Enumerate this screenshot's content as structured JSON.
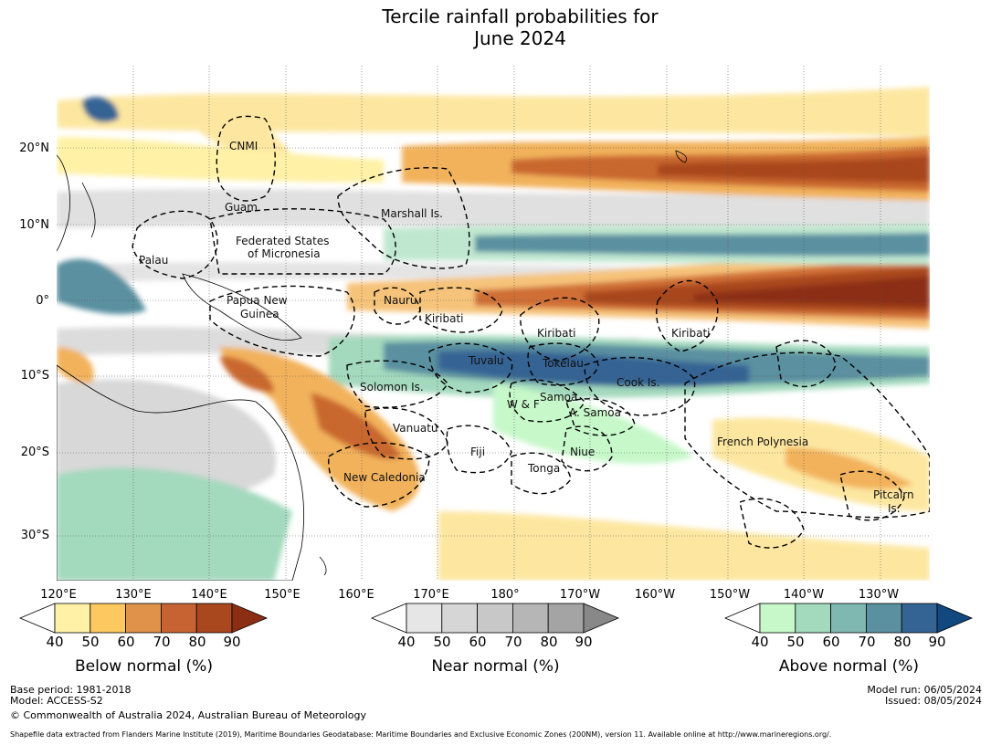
{
  "title": {
    "line1": "Tercile rainfall probabilities for",
    "line2": "June 2024"
  },
  "axes": {
    "lat_ticks": [
      "20°N",
      "10°N",
      "0°",
      "10°S",
      "20°S",
      "30°S"
    ],
    "lon_ticks": [
      "120°E",
      "130°E",
      "140°E",
      "150°E",
      "160°E",
      "170°E",
      "180°",
      "170°W",
      "160°W",
      "150°W",
      "140°W",
      "130°W"
    ]
  },
  "regions": [
    "CNMI",
    "Guam",
    "Marshall Is.",
    "Federated States",
    "of Micronesia",
    "Palau",
    "Nauru",
    "Papua New",
    "Guinea",
    "Kiribati",
    "Kiribati",
    "Kiribati",
    "Tuvalu",
    "Tokelau",
    "Cook Is.",
    "Solomon Is.",
    "Samoa",
    "W & F",
    "A. Samoa",
    "Vanuatu",
    "Fiji",
    "Niue",
    "Tonga",
    "French Polynesia",
    "New Caledonia",
    "Pitcairn",
    "Is."
  ],
  "colorbars": [
    {
      "title": "Below normal (%)",
      "ticks": [
        "40",
        "50",
        "60",
        "70",
        "80",
        "90"
      ],
      "colors": [
        "#fff1a6",
        "#fcc85f",
        "#e0924a",
        "#c76332",
        "#a9471f",
        "#8c2e14"
      ]
    },
    {
      "title": "Near normal (%)",
      "ticks": [
        "40",
        "50",
        "60",
        "70",
        "80",
        "90"
      ],
      "colors": [
        "#e6e6e6",
        "#d6d6d6",
        "#c8c8c8",
        "#b6b6b6",
        "#a4a4a4",
        "#888888"
      ]
    },
    {
      "title": "Above normal (%)",
      "ticks": [
        "40",
        "50",
        "60",
        "70",
        "80",
        "90"
      ],
      "colors": [
        "#c6f8c9",
        "#a3d9bd",
        "#7fb8b0",
        "#5a90a0",
        "#346494",
        "#114880"
      ]
    }
  ],
  "footer": {
    "base_period": "Base period: 1981-2018",
    "model": "Model: ACCESS-S2",
    "copyright": "© Commonwealth of Australia 2024, Australian Bureau of Meteorology",
    "model_run": "Model run: 06/05/2024",
    "issued": "Issued: 08/05/2024",
    "shapefile": "Shapefile data extracted from Flanders Marine Institute (2019), Maritime Boundaries Geodatabase: Maritime Boundaries and Exclusive Economic Zones (200NM), version 11. Available online at http://www.marineregions.org/."
  }
}
